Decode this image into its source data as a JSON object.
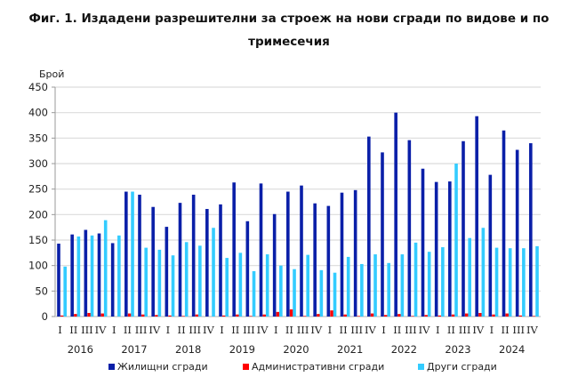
{
  "title": "Фиг. 1. Издадени разрешителни за строеж на нови сгради по видове и по тримесечия",
  "title_line1": "Фиг. 1. Издадени разрешителни за строеж на нови сгради по видове и по",
  "title_line2": "тримесечия",
  "chart_data": {
    "type": "bar",
    "title": "Фиг. 1. Издадени разрешителни за строеж на нови сгради по видове и по тримесечия",
    "xlabel": "",
    "ylabel": "Брой",
    "ylim": [
      0,
      450
    ],
    "yticks": [
      0,
      50,
      100,
      150,
      200,
      250,
      300,
      350,
      400,
      450
    ],
    "grid": true,
    "legend_position": "bottom",
    "years": [
      "2016",
      "2017",
      "2018",
      "2019",
      "2020",
      "2021",
      "2022",
      "2023",
      "2024"
    ],
    "quarter_labels": [
      "I",
      "II",
      "III",
      "IV"
    ],
    "categories": [
      "2016 I",
      "2016 II",
      "2016 III",
      "2016 IV",
      "2017 I",
      "2017 II",
      "2017 III",
      "2017 IV",
      "2018 I",
      "2018 II",
      "2018 III",
      "2018 IV",
      "2019 I",
      "2019 II",
      "2019 III",
      "2019 IV",
      "2020 I",
      "2020 II",
      "2020 III",
      "2020 IV",
      "2021 I",
      "2021 II",
      "2021 III",
      "2021 IV",
      "2022 I",
      "2022 II",
      "2022 III",
      "2022 IV",
      "2023 I",
      "2023 II",
      "2023 III",
      "2023 IV",
      "2024 I",
      "2024 II",
      "2024 III",
      "2024 IV"
    ],
    "series": [
      {
        "name": "Жилищни сгради",
        "color": "#0A1FA8",
        "values": [
          143,
          161,
          170,
          163,
          144,
          245,
          239,
          215,
          176,
          223,
          239,
          211,
          220,
          263,
          187,
          261,
          201,
          245,
          257,
          222,
          217,
          243,
          248,
          353,
          322,
          400,
          346,
          290,
          264,
          265,
          344,
          393,
          278,
          365,
          327,
          340
        ]
      },
      {
        "name": "Административни сгради",
        "color": "#FF0000",
        "values": [
          2,
          5,
          7,
          6,
          0,
          6,
          4,
          3,
          2,
          1,
          4,
          0,
          2,
          4,
          1,
          4,
          9,
          14,
          1,
          5,
          12,
          4,
          1,
          6,
          3,
          5,
          1,
          3,
          2,
          4,
          6,
          7,
          4,
          6,
          2,
          1
        ]
      },
      {
        "name": "Други сгради",
        "color": "#33CCFF",
        "values": [
          98,
          157,
          159,
          189,
          159,
          245,
          135,
          131,
          120,
          146,
          139,
          174,
          115,
          125,
          89,
          122,
          100,
          93,
          121,
          91,
          86,
          117,
          103,
          122,
          105,
          122,
          145,
          127,
          136,
          300,
          154,
          174,
          135,
          134,
          134,
          138
        ]
      }
    ]
  },
  "legend": [
    {
      "label": "Жилищни сгради",
      "color": "#0A1FA8"
    },
    {
      "label": "Административни сгради",
      "color": "#FF0000"
    },
    {
      "label": "Други сгради",
      "color": "#33CCFF"
    }
  ]
}
